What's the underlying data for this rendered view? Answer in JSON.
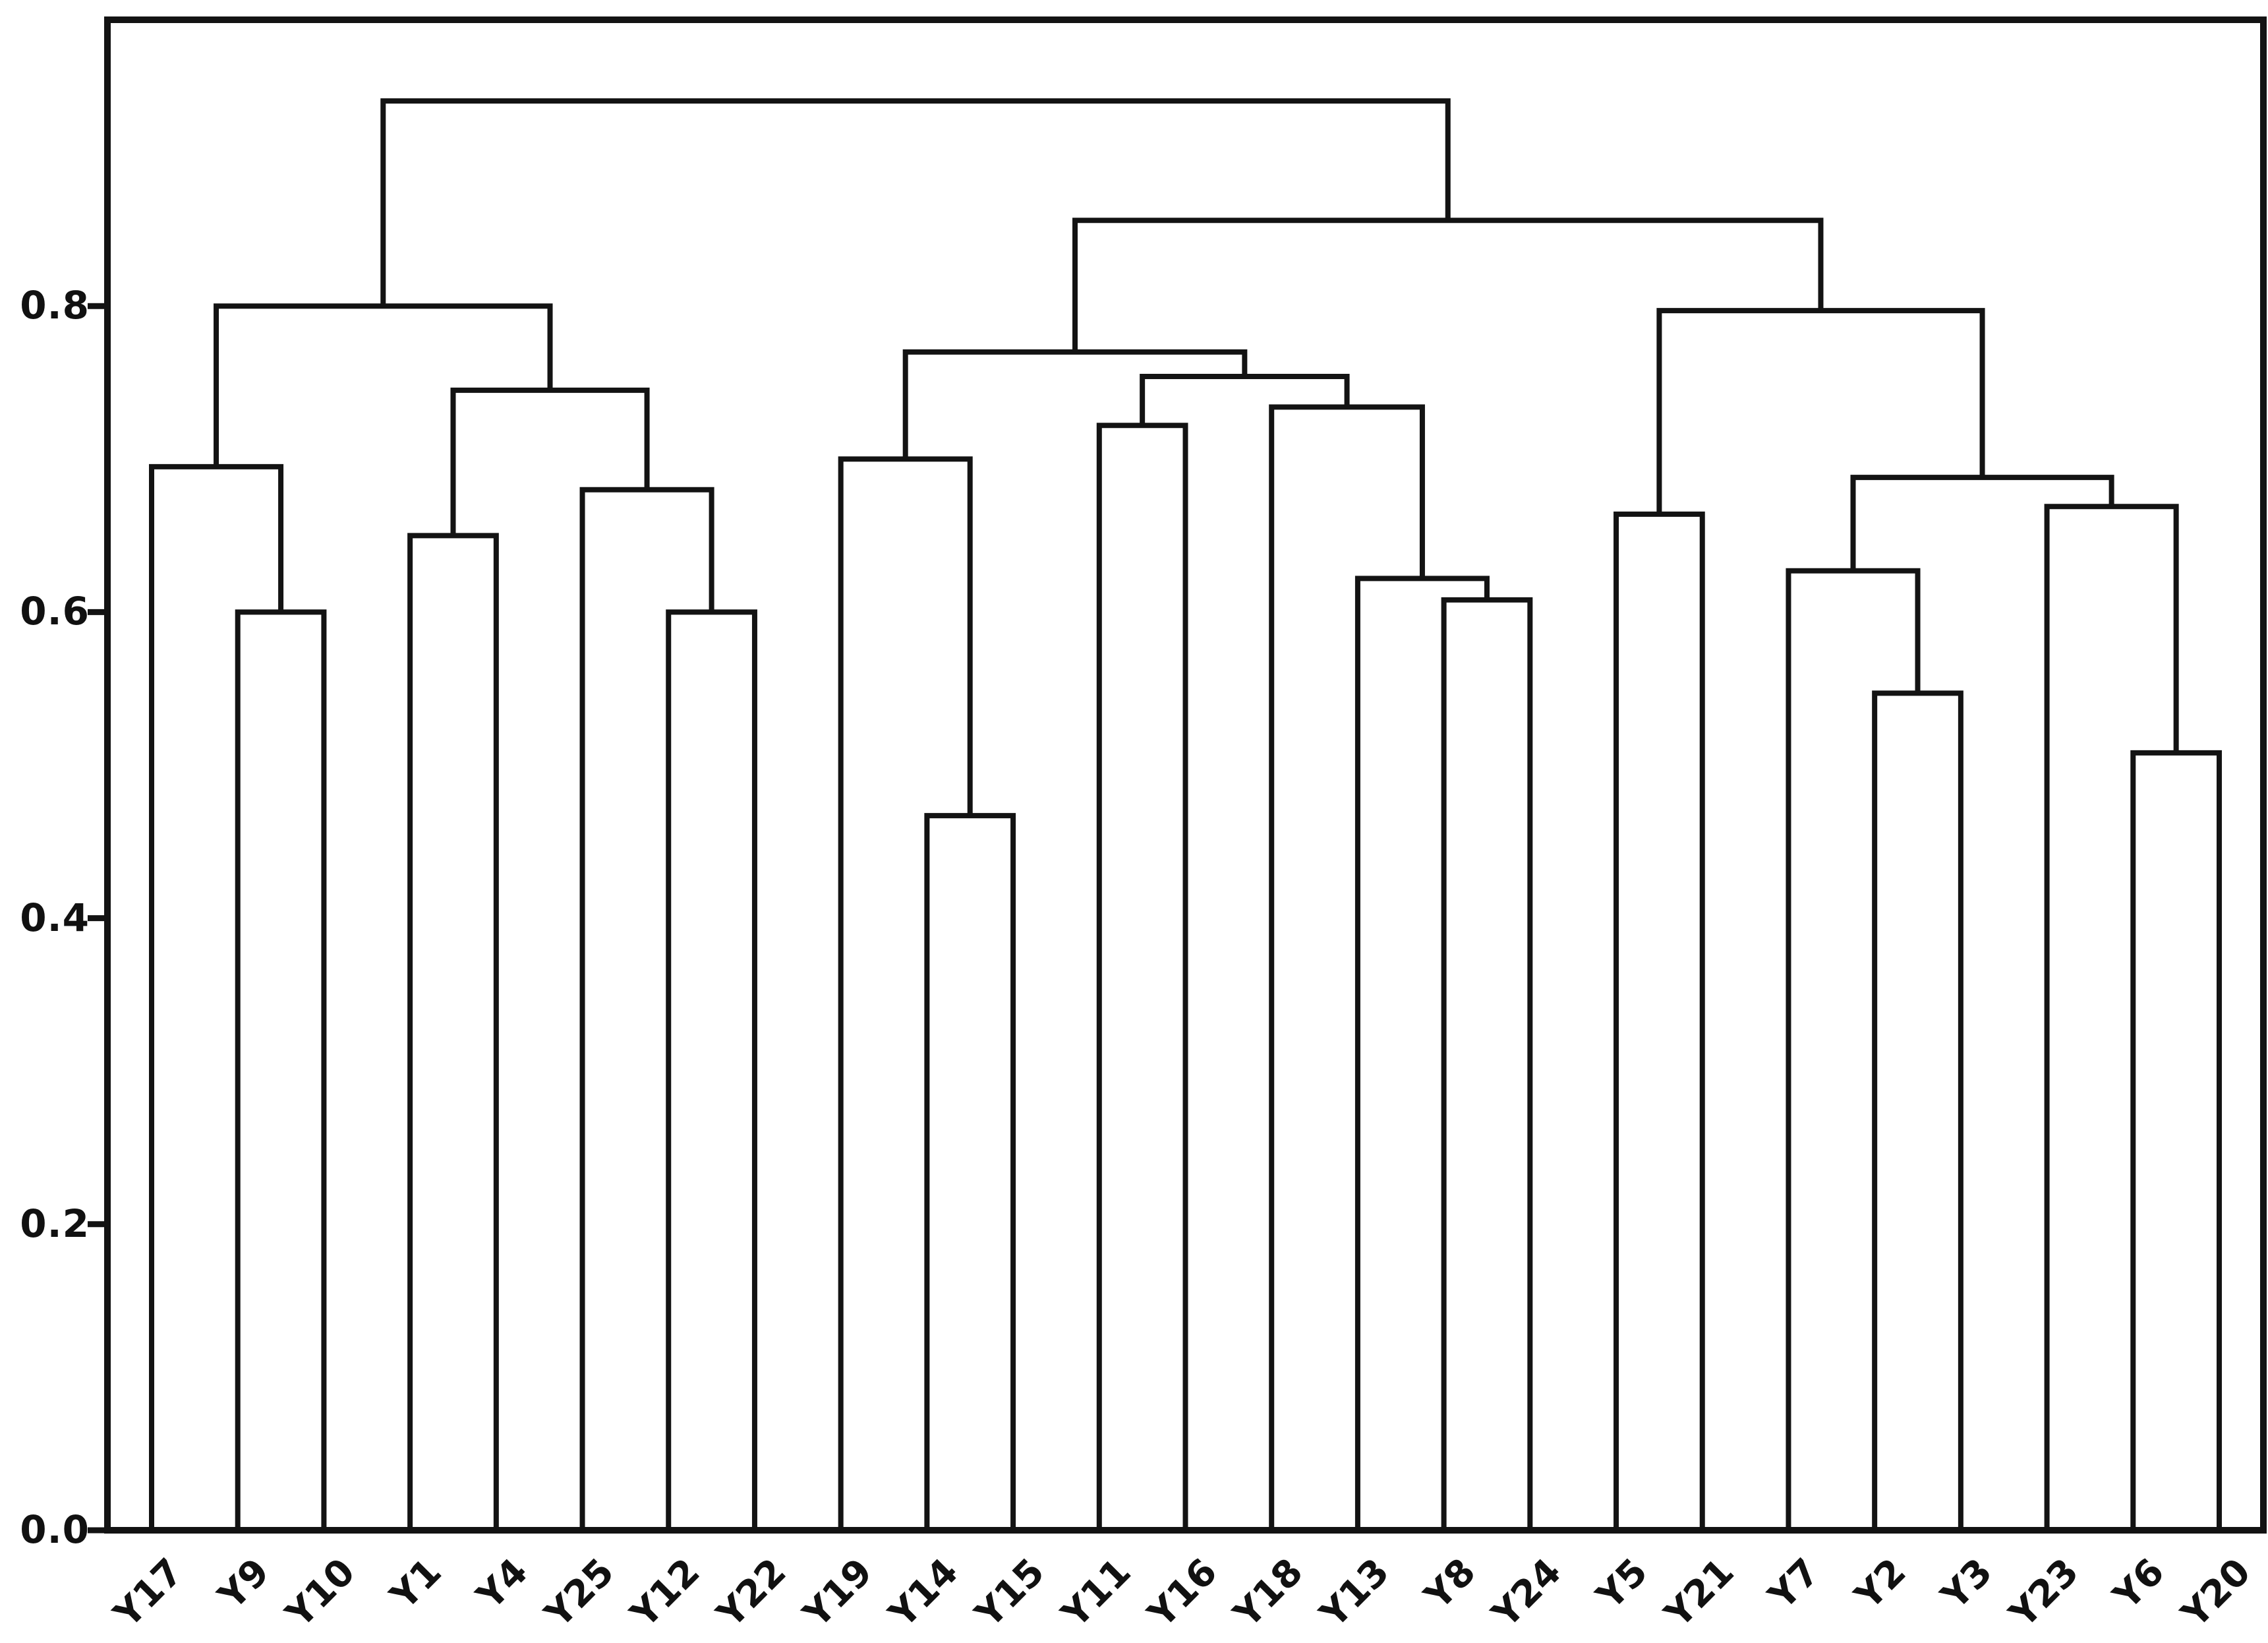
{
  "figure": {
    "title": "",
    "xlabel": "",
    "ylabel": "",
    "background_color": "#ffffff",
    "line_color": "#131313"
  },
  "chart_data": {
    "type": "dendrogram",
    "title": "",
    "xlabel": "",
    "ylabel": "",
    "grid": false,
    "legend": null,
    "ylim": [
      0.0,
      0.987
    ],
    "yticks": [
      0.0,
      0.2,
      0.4,
      0.6,
      0.8
    ],
    "ytick_labels": [
      "0.0",
      "0.2",
      "0.4",
      "0.6",
      "0.8"
    ],
    "leaf_order": [
      "Y17",
      "Y9",
      "Y10",
      "Y1",
      "Y4",
      "Y25",
      "Y12",
      "Y22",
      "Y19",
      "Y14",
      "Y15",
      "Y11",
      "Y16",
      "Y18",
      "Y13",
      "Y8",
      "Y24",
      "Y5",
      "Y21",
      "Y7",
      "Y2",
      "Y3",
      "Y23",
      "Y6",
      "Y20"
    ],
    "tree_format": "[merge_height, left_child, right_child] ; leaf = label string",
    "tree": [
      0.934,
      [
        0.8,
        [
          0.695,
          "Y17",
          [
            0.6,
            "Y9",
            "Y10"
          ]
        ],
        [
          0.745,
          [
            0.65,
            "Y1",
            "Y4"
          ],
          [
            0.68,
            "Y25",
            [
              0.6,
              "Y12",
              "Y22"
            ]
          ]
        ]
      ],
      [
        0.856,
        [
          0.77,
          [
            0.7,
            "Y19",
            [
              0.467,
              "Y14",
              "Y15"
            ]
          ],
          [
            0.754,
            [
              0.722,
              "Y11",
              "Y16"
            ],
            [
              0.734,
              "Y18",
              [
                0.622,
                "Y13",
                [
                  0.608,
                  "Y8",
                  "Y24"
                ]
              ]
            ]
          ]
        ],
        [
          0.797,
          [
            0.664,
            "Y5",
            "Y21"
          ],
          [
            0.688,
            [
              0.627,
              "Y7",
              [
                0.547,
                "Y2",
                "Y3"
              ]
            ],
            [
              0.669,
              "Y23",
              [
                0.508,
                "Y6",
                "Y20"
              ]
            ]
          ]
        ]
      ]
    ],
    "merges": [
      {
        "cluster": "(Y9,Y10)",
        "height": 0.6
      },
      {
        "cluster": "(Y17,(Y9,Y10))",
        "height": 0.695
      },
      {
        "cluster": "(Y1,Y4)",
        "height": 0.65
      },
      {
        "cluster": "(Y12,Y22)",
        "height": 0.6
      },
      {
        "cluster": "(Y25,(Y12,Y22))",
        "height": 0.68
      },
      {
        "cluster": "((Y1,Y4),(Y25,(Y12,Y22)))",
        "height": 0.745
      },
      {
        "cluster": "left-top",
        "height": 0.8
      },
      {
        "cluster": "(Y14,Y15)",
        "height": 0.467
      },
      {
        "cluster": "(Y19,(Y14,Y15))",
        "height": 0.7
      },
      {
        "cluster": "(Y11,Y16)",
        "height": 0.722
      },
      {
        "cluster": "(Y8,Y24)",
        "height": 0.608
      },
      {
        "cluster": "(Y13,(Y8,Y24))",
        "height": 0.622
      },
      {
        "cluster": "(Y18,(Y13,(Y8,Y24)))",
        "height": 0.734
      },
      {
        "cluster": "((Y11,Y16),(Y18,...))",
        "height": 0.754
      },
      {
        "cluster": "middle-top",
        "height": 0.77
      },
      {
        "cluster": "(Y2,Y3)",
        "height": 0.547
      },
      {
        "cluster": "(Y7,(Y2,Y3))",
        "height": 0.627
      },
      {
        "cluster": "(Y6,Y20)",
        "height": 0.508
      },
      {
        "cluster": "(Y23,(Y6,Y20))",
        "height": 0.669
      },
      {
        "cluster": "((Y7,..),(Y23,..))",
        "height": 0.688
      },
      {
        "cluster": "(Y5,Y21)",
        "height": 0.664
      },
      {
        "cluster": "right-top",
        "height": 0.797
      },
      {
        "cluster": "(middle,right)",
        "height": 0.856
      },
      {
        "cluster": "root",
        "height": 0.934
      }
    ]
  }
}
